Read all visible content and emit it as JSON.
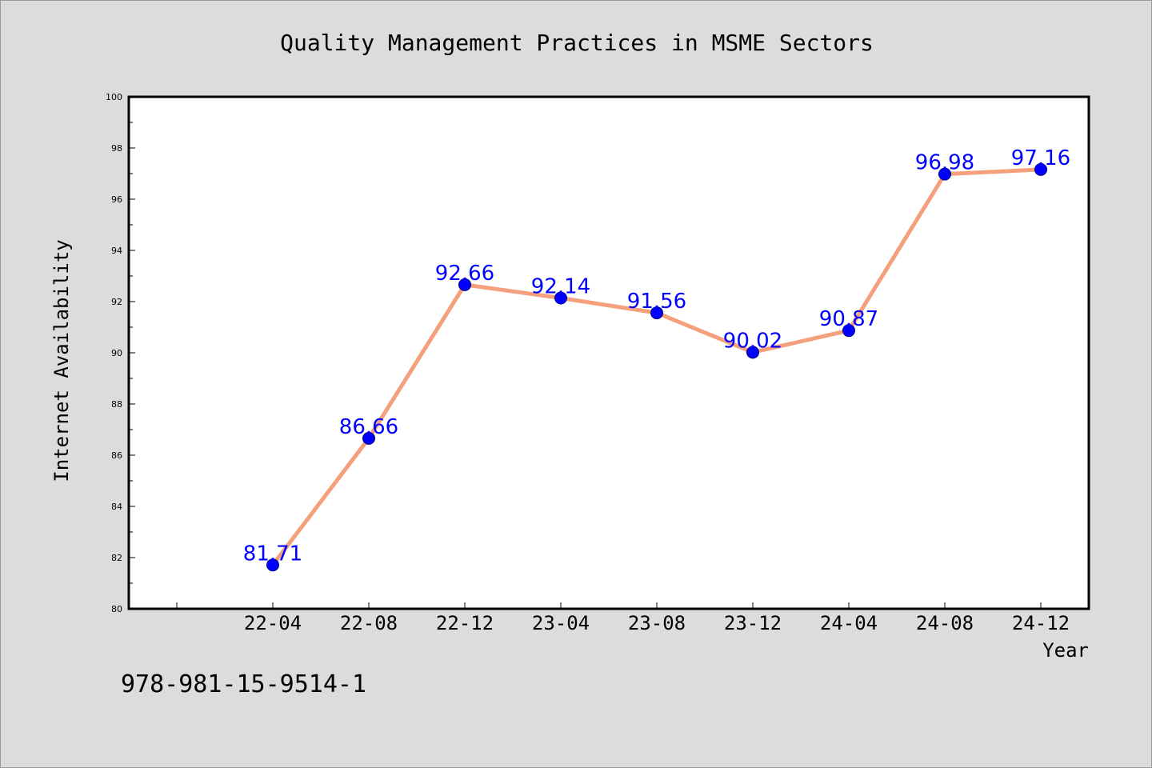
{
  "chart_data": {
    "type": "line",
    "title": "Quality Management Practices in MSME Sectors",
    "xlabel": "Year",
    "ylabel": "Internet Availability",
    "categories": [
      "22-04",
      "22-08",
      "22-12",
      "23-04",
      "23-08",
      "23-12",
      "24-04",
      "24-08",
      "24-12"
    ],
    "series": [
      {
        "values": [
          81.71,
          86.66,
          92.66,
          92.14,
          91.56,
          90.02,
          90.87,
          96.98,
          97.16
        ],
        "labels": [
          "81.71",
          "86.66",
          "92.66",
          "92.14",
          "91.56",
          "90.02",
          "90.87",
          "96.98",
          "97.16"
        ],
        "line_color": "#f4a07c",
        "marker_color": "#0000ff"
      }
    ],
    "ylim": [
      80,
      100
    ],
    "yticks": [
      "80",
      "82",
      "84",
      "86",
      "88",
      "90",
      "92",
      "94",
      "96",
      "98",
      "100"
    ],
    "grid": false,
    "legend": "none"
  },
  "footer": {
    "text": "978-981-15-9514-1"
  }
}
